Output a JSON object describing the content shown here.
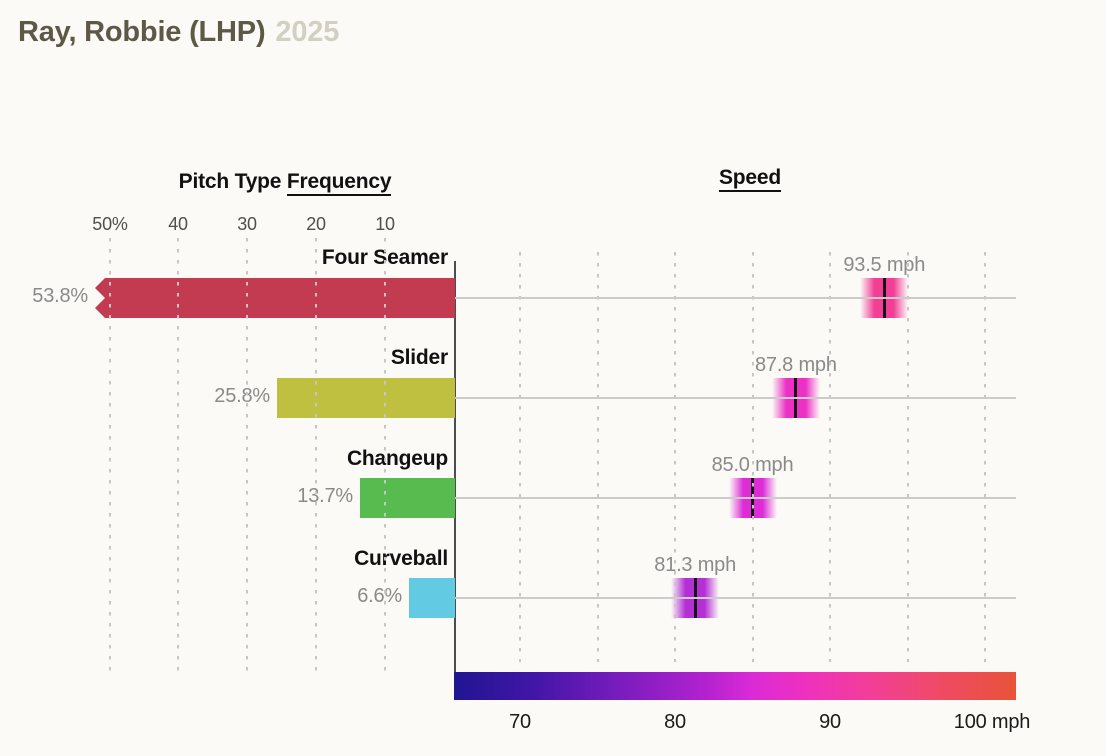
{
  "page_title": {
    "player": "Ray, Robbie (LHP)",
    "year": "2025"
  },
  "frequency_chart": {
    "title_prefix": "Pitch Type ",
    "title_underlined": "Frequency",
    "tick_labels": [
      "50%",
      "40",
      "30",
      "20",
      "10"
    ]
  },
  "speed_chart": {
    "title": "Speed",
    "tick_labels": [
      "70",
      "80",
      "90",
      "100 mph"
    ]
  },
  "colors": {
    "background": "#fbfaf7",
    "title_text": "#5e5947",
    "title_year": "#d3cfc2",
    "axis": "#4d4d4d",
    "gridline": "#c6c6c6",
    "row_line": "#cbcbcb",
    "value_label_gray": "#8a8a8a"
  },
  "chart_data": [
    {
      "type": "bar",
      "title": "Pitch Type Frequency",
      "orientation": "horizontal",
      "categories": [
        "Four Seamer",
        "Slider",
        "Changeup",
        "Curveball"
      ],
      "values": [
        53.8,
        25.8,
        13.7,
        6.6
      ],
      "value_labels": [
        "53.8%",
        "25.8%",
        "13.7%",
        "6.6%"
      ],
      "unit": "percent",
      "axis_ticks": [
        50,
        40,
        30,
        20,
        10
      ],
      "axis_reversed": true,
      "xlim": [
        0,
        52
      ],
      "grid": "dashed-vertical",
      "bar_colors": [
        "#c23b50",
        "#bfbf40",
        "#57bb50",
        "#62cbe3"
      ],
      "clipped_note": "Four Seamer bar exceeds the 50% axis limit and is drawn with a notched left end"
    },
    {
      "type": "scatter",
      "title": "Speed",
      "categories": [
        "Four Seamer",
        "Slider",
        "Changeup",
        "Curveball"
      ],
      "values": [
        93.5,
        87.8,
        85.0,
        81.3
      ],
      "value_labels": [
        "93.5 mph",
        "87.8 mph",
        "85.0 mph",
        "81.3 mph"
      ],
      "unit": "mph",
      "axis_ticks": [
        70,
        80,
        90,
        100
      ],
      "xlim": [
        65.8,
        102
      ],
      "grid": "dashed-vertical",
      "marker_style": "black vertical line with colored glow",
      "marker_colors": [
        "#f23f95",
        "#ec30c4",
        "#dd2bd6",
        "#b42fd4"
      ],
      "colorbar": {
        "min_mph": 65.8,
        "max_mph": 102,
        "stops": [
          "#211591 0%",
          "#4116a6 14%",
          "#7b1cbe 30%",
          "#b322cf 45%",
          "#da2ad7 53%",
          "#ee30c1 62%",
          "#f23e98 74%",
          "#ef4a67 86%",
          "#e85338 100%"
        ]
      }
    }
  ]
}
